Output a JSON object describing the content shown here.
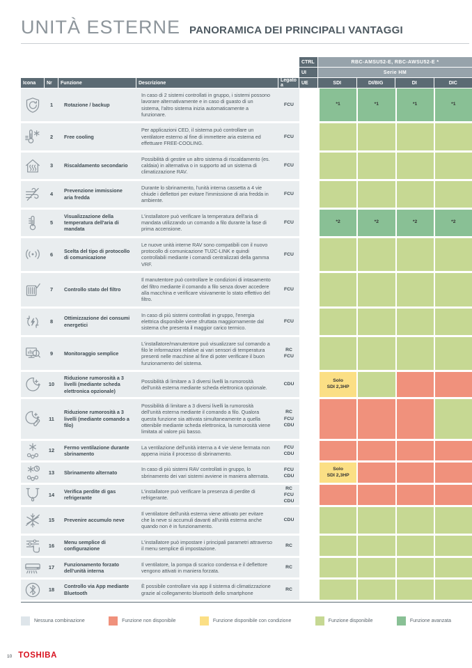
{
  "page": {
    "title": "UNITÀ ESTERNE",
    "subtitle": "PANORAMICA DEI PRINCIPALI VANTAGGI",
    "page_number": "10",
    "brand": "TOSHIBA"
  },
  "table": {
    "header": {
      "ctrl_label": "CTRL",
      "ctrl_value": "RBC-AMSU52-E, RBC-AWSU52-E *",
      "ui_label": "UI",
      "ui_value": "Serie HM",
      "ue_label": "UE",
      "columns": {
        "icona": "Icona",
        "nr": "Nr",
        "funzione": "Funzione",
        "descrizione": "Descrizione",
        "legato": "Legato a"
      },
      "model_columns": [
        "SDI",
        "DI/BIG",
        "DI",
        "DIC"
      ]
    },
    "rows": [
      {
        "icon": "shield-rotation-icon",
        "nr": "1",
        "funzione": "Rotazione / backup",
        "descrizione": "In caso di 2 sistemi controllati in gruppo, i sistemi possono lavorare alternativamente e in caso di guasto di un sistema, l'altro sistema inizia automaticamente a funzionare.",
        "legato_a": [
          "FCU"
        ],
        "cells": [
          {
            "state": "advanced",
            "label": "*1"
          },
          {
            "state": "advanced",
            "label": "*1"
          },
          {
            "state": "advanced",
            "label": "*1"
          },
          {
            "state": "advanced",
            "label": "*1"
          }
        ]
      },
      {
        "icon": "free-cooling-thermometer-icon",
        "nr": "2",
        "funzione": "Free cooling",
        "descrizione": "Per applicazioni CED, il sistema può controllare un ventilatore esterno al fine di immettere aria esterna ed effettuare FREE-COOLING.",
        "legato_a": [
          "FCU"
        ],
        "cells": [
          {
            "state": "available",
            "label": ""
          },
          {
            "state": "available",
            "label": ""
          },
          {
            "state": "available",
            "label": ""
          },
          {
            "state": "available",
            "label": ""
          }
        ]
      },
      {
        "icon": "house-heating-icon",
        "nr": "3",
        "funzione": "Riscaldamento secondario",
        "descrizione": "Possibilità di gestire un altro sistema di riscaldamento (es. caldaia) in alternativa o in supporto ad un sistema di climatizzazione RAV.",
        "legato_a": [
          "FCU"
        ],
        "cells": [
          {
            "state": "available",
            "label": ""
          },
          {
            "state": "available",
            "label": ""
          },
          {
            "state": "available",
            "label": ""
          },
          {
            "state": "available",
            "label": ""
          }
        ]
      },
      {
        "icon": "cold-air-block-icon",
        "nr": "4",
        "funzione": "Prevenzione immissione aria fredda",
        "descrizione": "Durante lo sbrinamento, l'unità interna cassetta a 4 vie chiude i deflettori per evitare l'immissione di aria fredda in ambiente.",
        "legato_a": [
          "FCU"
        ],
        "cells": [
          {
            "state": "available",
            "label": ""
          },
          {
            "state": "available",
            "label": ""
          },
          {
            "state": "available",
            "label": ""
          },
          {
            "state": "available",
            "label": ""
          }
        ]
      },
      {
        "icon": "thermometer-icon",
        "nr": "5",
        "funzione": "Visualizzazione della temperatura dell'aria di mandata",
        "descrizione": "L'installatore può verificare la temperatura dell'aria di mandata utilizzando un comando a filo durante la fase di prima accensione.",
        "legato_a": [
          "FCU"
        ],
        "cells": [
          {
            "state": "advanced",
            "label": "*2"
          },
          {
            "state": "advanced",
            "label": "*2"
          },
          {
            "state": "advanced",
            "label": "*2"
          },
          {
            "state": "advanced",
            "label": "*2"
          }
        ]
      },
      {
        "icon": "signal-protocol-icon",
        "nr": "6",
        "funzione": "Scelta del tipo di protocollo di comunicazione",
        "descrizione": "Le nuove unità interne RAV sono compatibili con il nuovo protocollo di comunicazione TU2C-LINK e quindi controllabili mediante i comandi centralizzati della gamma VRF.",
        "legato_a": [
          "FCU"
        ],
        "cells": [
          {
            "state": "available",
            "label": ""
          },
          {
            "state": "available",
            "label": ""
          },
          {
            "state": "available",
            "label": ""
          },
          {
            "state": "available",
            "label": ""
          }
        ]
      },
      {
        "icon": "filter-check-icon",
        "nr": "7",
        "funzione": "Controllo stato del filtro",
        "descrizione": "Il manutentore può controllare le condizioni di intasamento del filtro mediante il comando a filo senza dover accedere alla macchina e verificare visivamente lo stato effettivo del filtro.",
        "legato_a": [
          "FCU"
        ],
        "cells": [
          {
            "state": "available",
            "label": ""
          },
          {
            "state": "available",
            "label": ""
          },
          {
            "state": "available",
            "label": ""
          },
          {
            "state": "available",
            "label": ""
          }
        ]
      },
      {
        "icon": "energy-cycle-icon",
        "nr": "8",
        "funzione": "Ottimizzazione dei consumi energetici",
        "descrizione": "In caso di più sistemi controllati in gruppo, l'energia elettrica disponibile viene sfruttata maggiornamente dal sistema che presenta il maggior carico termico.",
        "legato_a": [
          "FCU"
        ],
        "cells": [
          {
            "state": "available",
            "label": ""
          },
          {
            "state": "available",
            "label": ""
          },
          {
            "state": "available",
            "label": ""
          },
          {
            "state": "available",
            "label": ""
          }
        ]
      },
      {
        "icon": "monitor-magnifier-icon",
        "nr": "9",
        "funzione": "Monitoraggio semplice",
        "descrizione": "L'installatore/manutentore può visualizzare sul comando a filo le informazioni relative ai vari sensori di temperatura presenti nelle macchine al fine di poter verificare il buon funzionamento del sistema.",
        "legato_a": [
          "RC",
          "FCU"
        ],
        "cells": [
          {
            "state": "available",
            "label": ""
          },
          {
            "state": "available",
            "label": ""
          },
          {
            "state": "available",
            "label": ""
          },
          {
            "state": "available",
            "label": ""
          }
        ]
      },
      {
        "icon": "night-mode-icon",
        "nr": "10",
        "funzione": "Riduzione rumorosità a 3 livelli (mediante scheda elettronica opzionale)",
        "descrizione": "Possibilità di limitare a 3 diversi livelli la rumorosità dell'unità esterna mediante scheda elettronica opzionale.",
        "legato_a": [
          "CDU"
        ],
        "cells": [
          {
            "state": "conditional",
            "label": "Solo\nSDI 2,3HP"
          },
          {
            "state": "available",
            "label": ""
          },
          {
            "state": "unavailable",
            "label": ""
          },
          {
            "state": "unavailable",
            "label": ""
          }
        ]
      },
      {
        "icon": "night-mode-remote-icon",
        "nr": "11",
        "funzione": "Riduzione rumorosità a 3 livelli (mediante comando a filo)",
        "descrizione": "Possibilità di limitare a 3 diversi livelli la rumorosità dell'unità esterna mediante il comando a filo. Qualora questa funzione sia attivata simultaneamente a quella ottenibile mediante scheda elettronica, la rumorosità viene limitata al valore più basso.",
        "legato_a": [
          "RC",
          "FCU",
          "CDU"
        ],
        "cells": [
          {
            "state": "unavailable",
            "label": ""
          },
          {
            "state": "unavailable",
            "label": ""
          },
          {
            "state": "unavailable",
            "label": ""
          },
          {
            "state": "available",
            "label": ""
          }
        ]
      },
      {
        "icon": "defrost-fan-stop-icon",
        "nr": "12",
        "funzione": "Fermo ventilazione durante sbrinamento",
        "descrizione": "La ventilazione dell'unità interna a 4 vie viene fermata non appena inizia il processo di sbrinamento.",
        "legato_a": [
          "FCU",
          "CDU"
        ],
        "cells": [
          {
            "state": "unavailable",
            "label": ""
          },
          {
            "state": "unavailable",
            "label": ""
          },
          {
            "state": "unavailable",
            "label": ""
          },
          {
            "state": "unavailable",
            "label": ""
          }
        ]
      },
      {
        "icon": "defrost-clock-icon",
        "nr": "13",
        "funzione": "Sbrinamento alternato",
        "descrizione": "In caso di più sistemi RAV controllati in gruppo, lo sbrinamento dei vari sistemi avviene in maniera alternata.",
        "legato_a": [
          "FCU",
          "CDU"
        ],
        "cells": [
          {
            "state": "conditional",
            "label": "Solo\nSDI 2,3HP"
          },
          {
            "state": "unavailable",
            "label": ""
          },
          {
            "state": "unavailable",
            "label": ""
          },
          {
            "state": "unavailable",
            "label": ""
          }
        ]
      },
      {
        "icon": "pipe-leak-icon",
        "nr": "14",
        "funzione": "Verifica perdite di gas refrigerante",
        "descrizione": "L'installatore può verificare la presenza di perdite di refrigerante.",
        "legato_a": [
          "RC",
          "FCU",
          "CDU"
        ],
        "cells": [
          {
            "state": "unavailable",
            "label": ""
          },
          {
            "state": "unavailable",
            "label": ""
          },
          {
            "state": "unavailable",
            "label": ""
          },
          {
            "state": "unavailable",
            "label": ""
          }
        ]
      },
      {
        "icon": "snow-prevention-icon",
        "nr": "15",
        "funzione": "Prevenire accumulo neve",
        "descrizione": "Il ventilatore dell'unità esterna viene attivato per evitare che la neve si accumuli davanti all'unità esterna anche quando non è in funzionamento.",
        "legato_a": [
          "CDU"
        ],
        "cells": [
          {
            "state": "available",
            "label": ""
          },
          {
            "state": "available",
            "label": ""
          },
          {
            "state": "available",
            "label": ""
          },
          {
            "state": "available",
            "label": ""
          }
        ]
      },
      {
        "icon": "settings-sliders-icon",
        "nr": "16",
        "funzione": "Menu semplice di configurazione",
        "descrizione": "L'installatore può impostare i principali parametri attraverso il menu semplice di impostazione.",
        "legato_a": [
          "RC"
        ],
        "cells": [
          {
            "state": "available",
            "label": ""
          },
          {
            "state": "available",
            "label": ""
          },
          {
            "state": "available",
            "label": ""
          },
          {
            "state": "available",
            "label": ""
          }
        ]
      },
      {
        "icon": "indoor-unit-icon",
        "nr": "17",
        "funzione": "Funzionamento forzato dell'unità interna",
        "descrizione": "Il ventilatore, la pompa di scarico condensa e il deflettore vengono attivati in maniera forzata.",
        "legato_a": [
          "RC"
        ],
        "cells": [
          {
            "state": "available",
            "label": ""
          },
          {
            "state": "available",
            "label": ""
          },
          {
            "state": "available",
            "label": ""
          },
          {
            "state": "available",
            "label": ""
          }
        ]
      },
      {
        "icon": "bluetooth-icon",
        "nr": "18",
        "funzione": "Controllo via App mediante Bluetooth",
        "descrizione": "È possibile controllare via app il sistema di climatizzazione grazie al collegamento bluetooth dello smartphone",
        "legato_a": [
          "RC"
        ],
        "cells": [
          {
            "state": "available",
            "label": ""
          },
          {
            "state": "available",
            "label": ""
          },
          {
            "state": "available",
            "label": ""
          },
          {
            "state": "available",
            "label": ""
          }
        ]
      }
    ]
  },
  "legend": {
    "items": [
      {
        "state": "none",
        "label": "Nessuna combinazione"
      },
      {
        "state": "unavailable",
        "label": "Funzione non disponibile"
      },
      {
        "state": "conditional",
        "label": "Funzione disponibile con condizione"
      },
      {
        "state": "available",
        "label": "Funzione disponibile"
      },
      {
        "state": "advanced",
        "label": "Funzione avanzata"
      }
    ]
  },
  "colors": {
    "states": {
      "none": "#dee5ea",
      "unavailable": "#f0917c",
      "conditional": "#fbdf85",
      "available": "#c6d893",
      "advanced": "#89c095"
    },
    "header_dark": "#5b6a73",
    "header_band": "#97a3ab",
    "row_background": "#e9edef",
    "brand_red": "#d8121f"
  }
}
